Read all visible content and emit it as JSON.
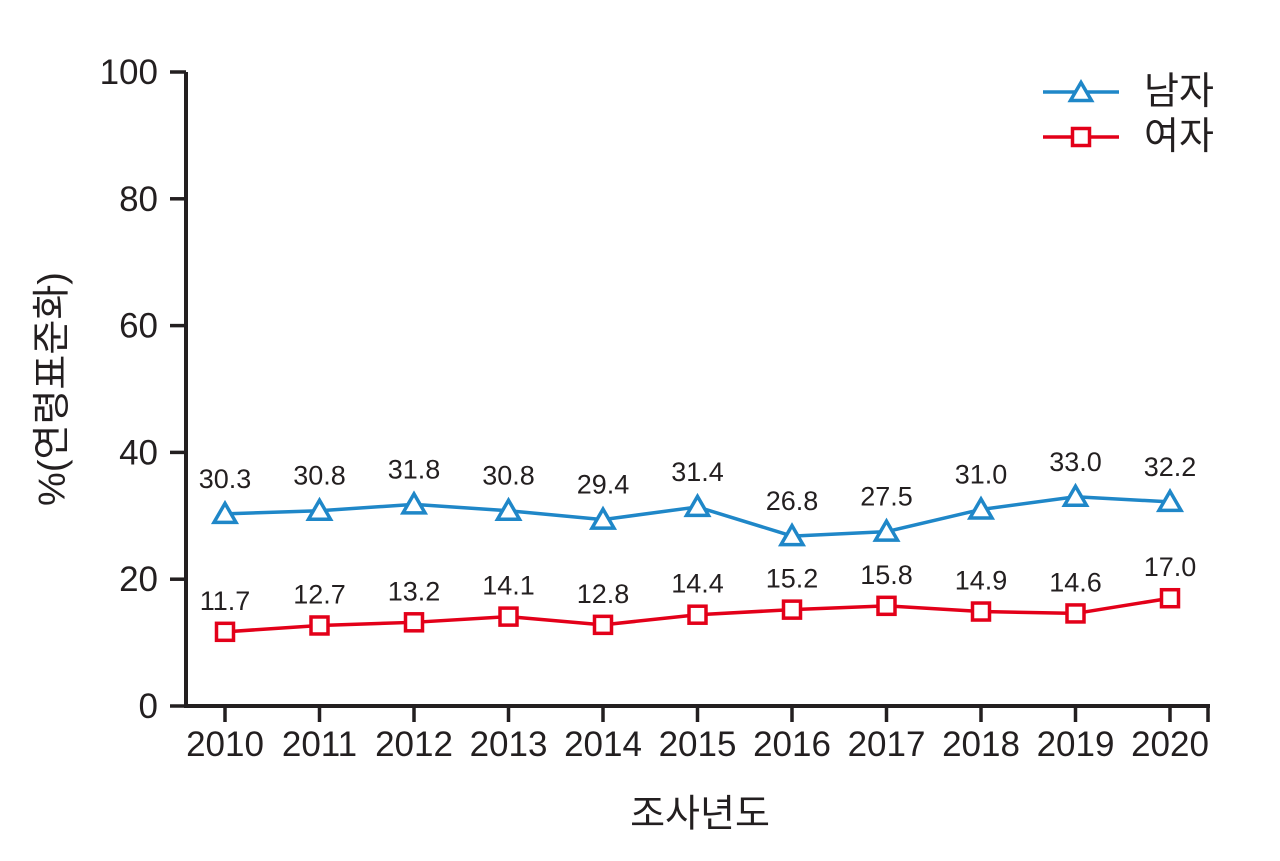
{
  "chart_data": {
    "type": "line",
    "title": "",
    "xlabel": "조사년도",
    "ylabel": "%(연령표준화)",
    "ylim": [
      0,
      100
    ],
    "y_ticks": [
      0,
      20,
      40,
      60,
      80,
      100
    ],
    "x": [
      "2010",
      "2011",
      "2012",
      "2013",
      "2014",
      "2015",
      "2016",
      "2017",
      "2018",
      "2019",
      "2020"
    ],
    "grid": false,
    "legend_position": "top-right",
    "background": "#ffffff",
    "axis_color": "#231f20",
    "text_color": "#231f20",
    "value_label_decimals": 1,
    "series": [
      {
        "name": "남자",
        "marker": "triangle",
        "color": "#1f87c8",
        "values": [
          30.3,
          30.8,
          31.8,
          30.8,
          29.4,
          31.4,
          26.8,
          27.5,
          31.0,
          33.0,
          32.2
        ]
      },
      {
        "name": "여자",
        "marker": "square",
        "color": "#e30019",
        "values": [
          11.7,
          12.7,
          13.2,
          14.1,
          12.8,
          14.4,
          15.2,
          15.8,
          14.9,
          14.6,
          17.0
        ]
      }
    ]
  }
}
